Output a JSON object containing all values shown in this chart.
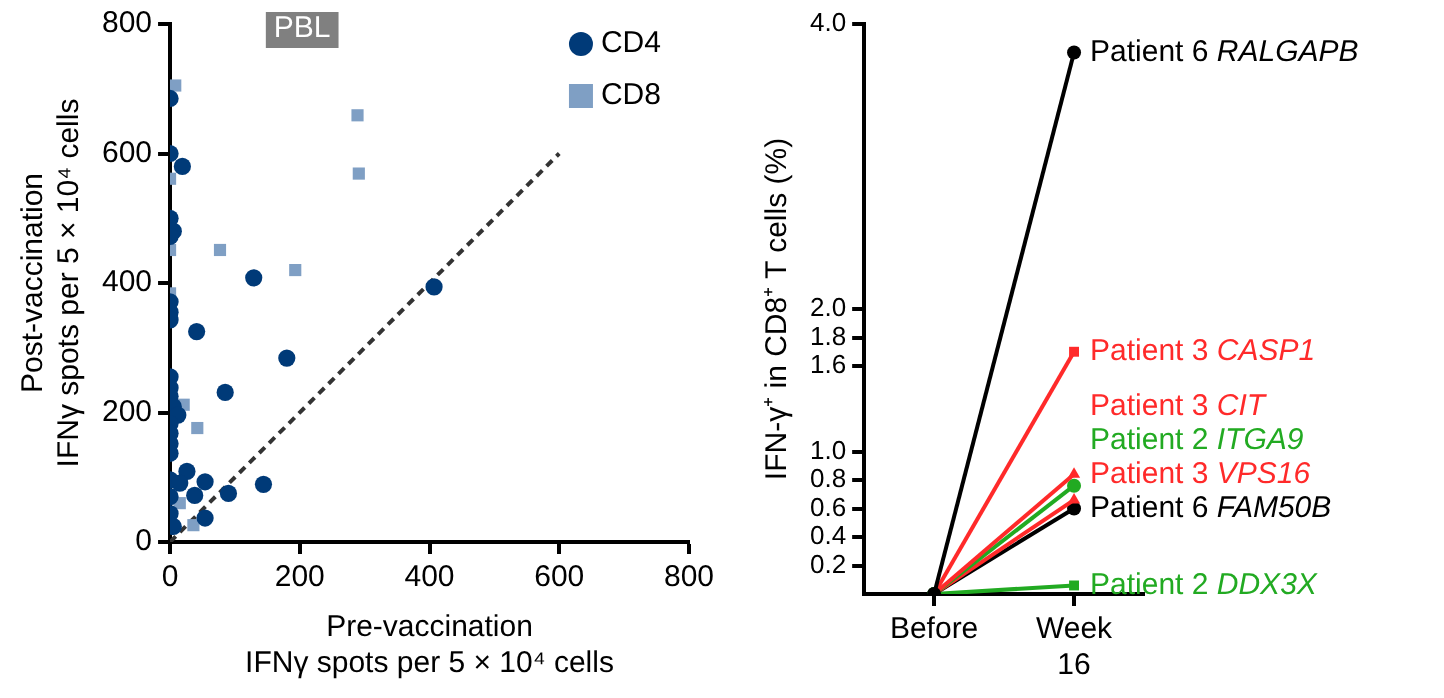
{
  "chart_data": [
    {
      "type": "scatter",
      "annotations": [
        "PBL"
      ],
      "xlabel": "Pre-vaccination\nIFNγ spots per 5 × 10⁴ cells",
      "ylabel": "Post-vaccination\nIFNγ spots per 5 × 10⁴ cells",
      "xlim": [
        0,
        800
      ],
      "ylim": [
        0,
        800
      ],
      "xticks": [
        0,
        200,
        400,
        600,
        800
      ],
      "yticks": [
        0,
        200,
        400,
        600,
        800
      ],
      "grid": false,
      "legend": "top right",
      "series": [
        {
          "name": "CD4",
          "color": "#003a78",
          "marker": "circle",
          "x": [
            0,
            0,
            19,
            0,
            5,
            0,
            129,
            407,
            0,
            0,
            0,
            41,
            180,
            85,
            0,
            0,
            0,
            5,
            12,
            0,
            0,
            0,
            0,
            0,
            0,
            26,
            15,
            54,
            38,
            90,
            144,
            54,
            0,
            5
          ],
          "values": [
            685,
            600,
            580,
            500,
            480,
            472,
            408,
            394,
            371,
            355,
            343,
            325,
            284,
            231,
            255,
            238,
            225,
            209,
            196,
            183,
            168,
            152,
            137,
            96,
            70,
            109,
            91,
            93,
            72,
            75,
            89,
            37,
            44,
            24
          ]
        },
        {
          "name": "CD8",
          "color": "#7f9fc4",
          "marker": "square",
          "x": [
            8,
            0,
            289,
            291,
            77,
            193,
            0,
            0,
            21,
            42,
            15,
            36
          ],
          "values": [
            705,
            561,
            659,
            569,
            451,
            420,
            451,
            384,
            212,
            176,
            60,
            26
          ]
        },
        {
          "type": "line",
          "color": "#333333",
          "line_style": "dashed",
          "marker": "none",
          "x": [
            0,
            600
          ],
          "values": [
            0,
            600
          ]
        }
      ]
    },
    {
      "type": "line",
      "ylabel": "IFN-γ⁺ in CD8⁺ T cells (%)",
      "categories": [
        "Before",
        "Week 16"
      ],
      "ylim": [
        0,
        4.0
      ],
      "yticks": [
        0.2,
        0.4,
        0.6,
        0.8,
        {
          "value": 1,
          "label": "1.0"
        },
        1.6,
        1.8,
        {
          "value": 2,
          "label": "2.0"
        },
        {
          "value": 4,
          "label": "4.0"
        }
      ],
      "grid": false,
      "legend": false,
      "series": [
        {
          "name": "Patient 6 RALGAPB",
          "color": "#000000",
          "marker": "circle",
          "values": [
            0,
            3.8
          ]
        },
        {
          "name": "Patient 3 CASP1",
          "color": "#ff2a2a",
          "marker": "square",
          "values": [
            0,
            1.7
          ]
        },
        {
          "name": "Patient 3 CIT",
          "color": "#ff2a2a",
          "marker": "triangle",
          "values": [
            0,
            0.84
          ]
        },
        {
          "name": "Patient 2 ITGA9",
          "color": "#22aa22",
          "marker": "circle",
          "values": [
            0,
            0.76
          ]
        },
        {
          "name": "Patient 3 VPS16",
          "color": "#ff2a2a",
          "marker": "triangle",
          "values": [
            0,
            0.66
          ]
        },
        {
          "name": "Patient 6 FAM50B",
          "color": "#000000",
          "marker": "circle",
          "values": [
            0,
            0.6
          ]
        },
        {
          "name": "Patient 2 DDX3X",
          "color": "#22aa22",
          "marker": "square",
          "values": [
            0,
            0.06
          ]
        }
      ]
    }
  ]
}
